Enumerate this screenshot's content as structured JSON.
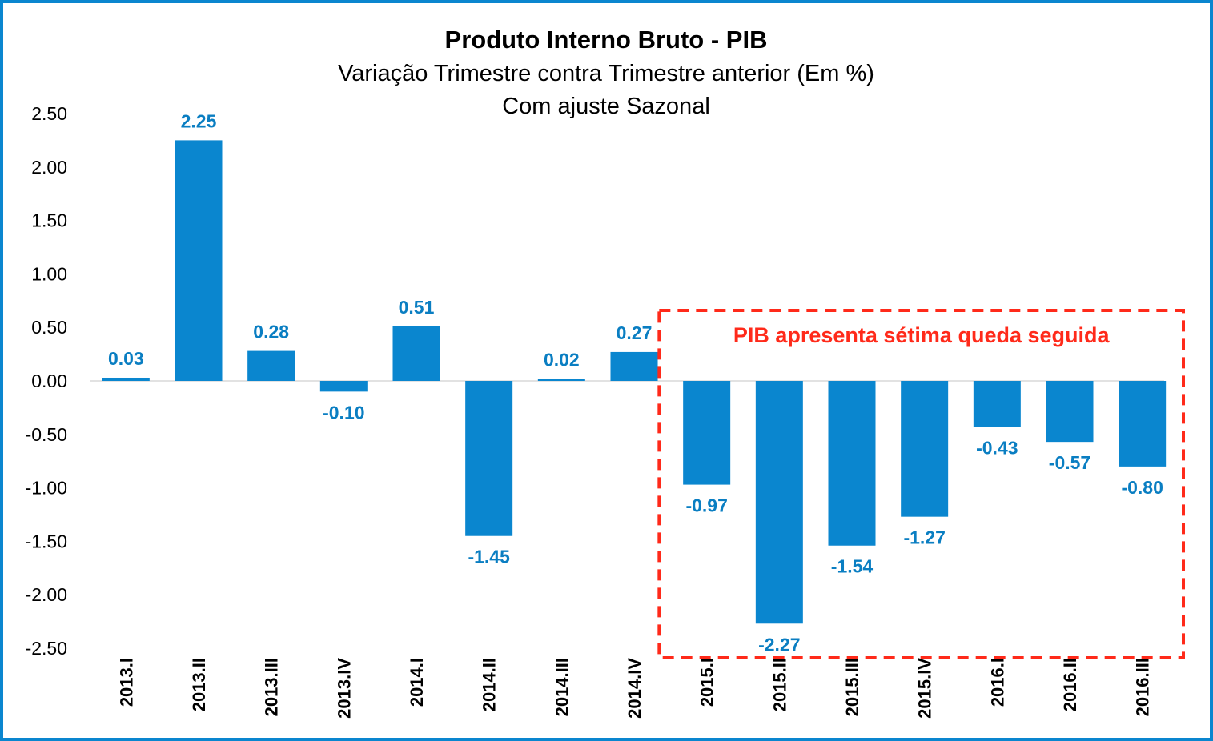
{
  "chart_data": {
    "type": "bar",
    "title": "Produto Interno Bruto - PIB",
    "subtitle_lines": [
      "Variação Trimestre contra Trimestre anterior (Em %)",
      "Com ajuste Sazonal"
    ],
    "categories": [
      "2013.I",
      "2013.II",
      "2013.III",
      "2013.IV",
      "2014.I",
      "2014.II",
      "2014.III",
      "2014.IV",
      "2015.I",
      "2015.II",
      "2015.III",
      "2015.IV",
      "2016.I",
      "2016.II",
      "2016.III"
    ],
    "values": [
      0.03,
      2.25,
      0.28,
      -0.1,
      0.51,
      -1.45,
      0.02,
      0.27,
      -0.97,
      -2.27,
      -1.54,
      -1.27,
      -0.43,
      -0.57,
      -0.8
    ],
    "value_labels": [
      "0.03",
      "2.25",
      "0.28",
      "-0.10",
      "0.51",
      "-1.45",
      "0.02",
      "0.27",
      "-0.97",
      "-2.27",
      "-1.54",
      "-1.27",
      "-0.43",
      "-0.57",
      "-0.80"
    ],
    "yticks": [
      "2.50",
      "2.00",
      "1.50",
      "1.00",
      "0.50",
      "0.00",
      "-0.50",
      "-1.00",
      "-1.50",
      "-2.00",
      "-2.50"
    ],
    "ylim": [
      -2.5,
      2.5
    ],
    "xlabel": "",
    "ylabel": "",
    "grid": false,
    "legend": "none",
    "bar_color": "#0a86cf",
    "label_color": "#0a7ec2",
    "annotation": {
      "text": "PIB apresenta sétima queda seguida",
      "color": "#ff2a1a",
      "highlight_range": [
        "2015.I",
        "2016.III"
      ]
    }
  },
  "frame_color": "#0a86cf"
}
